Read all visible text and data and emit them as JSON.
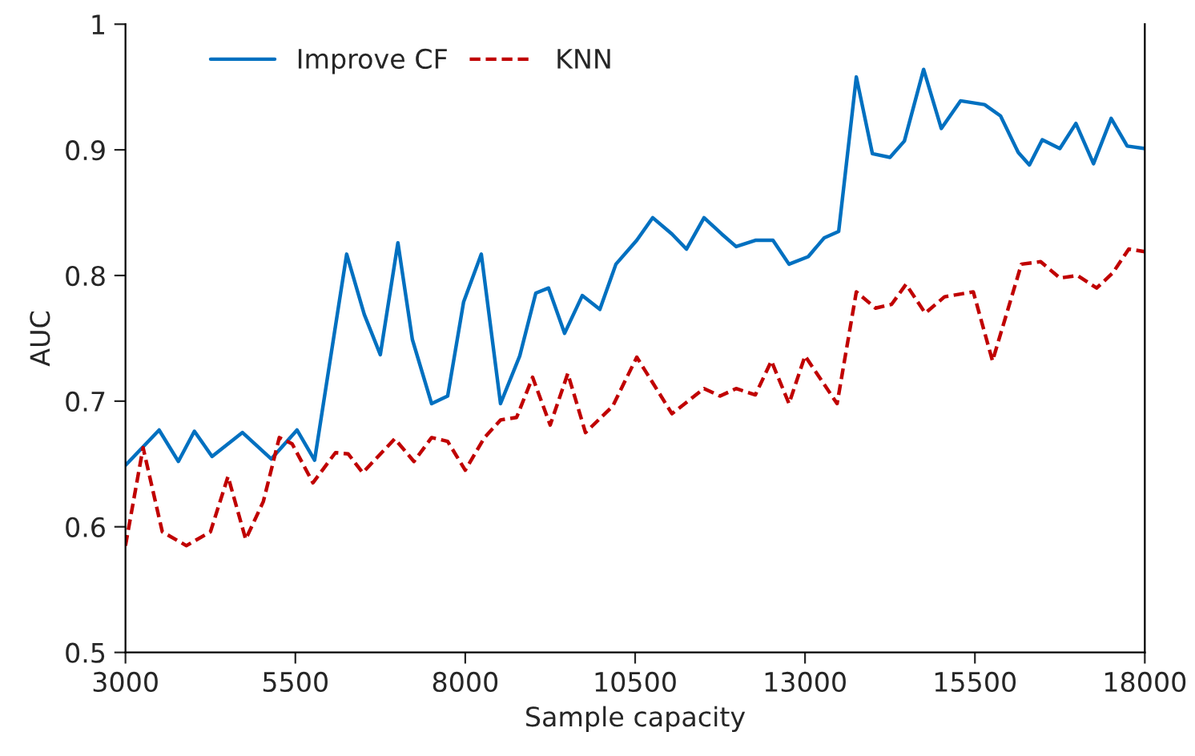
{
  "chart_data": {
    "type": "line",
    "xlabel": "Sample capacity",
    "ylabel": "AUC",
    "xlim": [
      3000,
      18000
    ],
    "xticks": [
      3000,
      5500,
      8000,
      10500,
      13000,
      15500,
      18000
    ],
    "ylim": [
      0.5,
      1
    ],
    "yticks": [
      0.5,
      0.6,
      0.7,
      0.8,
      0.9,
      {
        "value": 1,
        "label": "1"
      }
    ],
    "grid": false,
    "legend": "top left",
    "marker": "none",
    "series": [
      {
        "name": "Improve CF",
        "color": "#0070c0",
        "line_style": "solid",
        "x": [
          3000,
          3495,
          3778,
          4014,
          4274,
          4722,
          5146,
          5524,
          5783,
          6255,
          6514,
          6750,
          7009,
          7222,
          7505,
          7741,
          7976,
          8236,
          8519,
          8802,
          9038,
          9226,
          9462,
          9722,
          9981,
          10217,
          10524,
          10759,
          11042,
          11255,
          11514,
          11774,
          11986,
          12269,
          12528,
          12764,
          13047,
          13283,
          13495,
          13755,
          13991,
          14250,
          14462,
          14745,
          15005,
          15288,
          15642,
          15877,
          16137,
          16302,
          16491,
          16750,
          16986,
          17245,
          17505,
          17741,
          18000
        ],
        "values": [
          0.649,
          0.677,
          0.652,
          0.676,
          0.656,
          0.675,
          0.654,
          0.677,
          0.653,
          0.817,
          0.769,
          0.737,
          0.826,
          0.749,
          0.698,
          0.704,
          0.779,
          0.817,
          0.698,
          0.736,
          0.786,
          0.79,
          0.754,
          0.784,
          0.773,
          0.809,
          0.828,
          0.846,
          0.833,
          0.821,
          0.846,
          0.833,
          0.823,
          0.828,
          0.828,
          0.809,
          0.815,
          0.83,
          0.835,
          0.958,
          0.897,
          0.894,
          0.907,
          0.964,
          0.917,
          0.939,
          0.936,
          0.927,
          0.898,
          0.888,
          0.908,
          0.901,
          0.921,
          0.889,
          0.925,
          0.903,
          0.901
        ]
      },
      {
        "name": "KNN",
        "color": "#c00000",
        "line_style": "dashed",
        "x": [
          3000,
          3259,
          3542,
          3896,
          4250,
          4509,
          4769,
          5028,
          5264,
          5453,
          5759,
          6090,
          6278,
          6491,
          6962,
          7245,
          7505,
          7741,
          8000,
          8283,
          8519,
          8755,
          8991,
          9250,
          9509,
          9769,
          10170,
          10524,
          11042,
          11514,
          11750,
          11986,
          12269,
          12505,
          12764,
          13000,
          13472,
          13755,
          14038,
          14274,
          14486,
          14769,
          15052,
          15476,
          15759,
          16184,
          16467,
          16750,
          17009,
          17292,
          17528,
          17764,
          18000
        ],
        "values": [
          0.585,
          0.663,
          0.596,
          0.585,
          0.596,
          0.64,
          0.59,
          0.62,
          0.671,
          0.666,
          0.635,
          0.659,
          0.658,
          0.643,
          0.67,
          0.652,
          0.671,
          0.668,
          0.645,
          0.671,
          0.685,
          0.687,
          0.719,
          0.681,
          0.722,
          0.675,
          0.696,
          0.735,
          0.69,
          0.71,
          0.704,
          0.71,
          0.705,
          0.732,
          0.698,
          0.736,
          0.698,
          0.787,
          0.774,
          0.777,
          0.793,
          0.77,
          0.783,
          0.787,
          0.732,
          0.809,
          0.811,
          0.798,
          0.8,
          0.79,
          0.802,
          0.821,
          0.819
        ]
      }
    ]
  }
}
